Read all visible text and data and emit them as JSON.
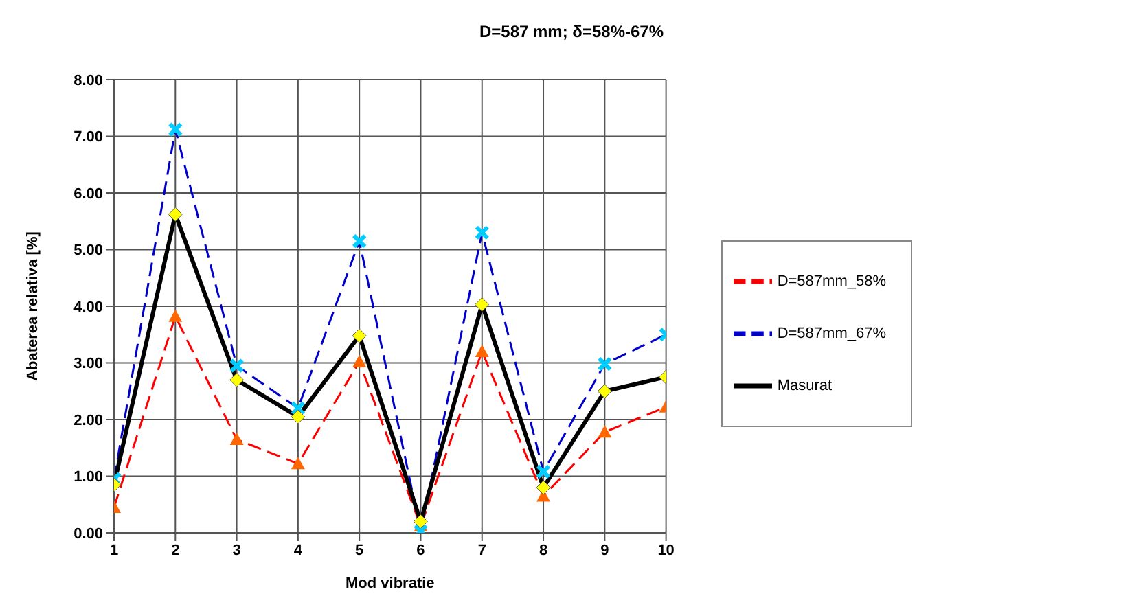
{
  "chart_data": {
    "type": "line",
    "title": "D=587 mm; δ=58%-67%",
    "xlabel": "Mod vibratie",
    "ylabel": "Abaterea relativa [%]",
    "x": [
      1,
      2,
      3,
      4,
      5,
      6,
      7,
      8,
      9,
      10
    ],
    "series": [
      {
        "name": "D=587mm_58%",
        "color": "#ff0000",
        "marker": "triangle",
        "line_style": "dashed",
        "values": [
          0.45,
          3.82,
          1.65,
          1.22,
          3.02,
          0.12,
          3.2,
          0.65,
          1.78,
          2.22
        ]
      },
      {
        "name": "D=587mm_67%",
        "color": "#0000cc",
        "marker": "cross",
        "line_style": "dashed",
        "values": [
          0.95,
          7.12,
          2.95,
          2.2,
          5.15,
          0.03,
          5.3,
          1.08,
          2.98,
          3.5
        ]
      },
      {
        "name": "Masurat",
        "color": "#000000",
        "marker": "diamond",
        "line_style": "solid",
        "values": [
          0.85,
          5.62,
          2.7,
          2.05,
          3.48,
          0.2,
          4.03,
          0.8,
          2.5,
          2.75
        ]
      }
    ],
    "xlim": [
      1,
      10
    ],
    "xticks": [
      1,
      2,
      3,
      4,
      5,
      6,
      7,
      8,
      9,
      10
    ],
    "ylim": [
      0,
      8
    ],
    "yticks": [
      {
        "value": 0,
        "label": "0.00"
      },
      {
        "value": 1,
        "label": "1.00"
      },
      {
        "value": 2,
        "label": "2.00"
      },
      {
        "value": 3,
        "label": "3.00"
      },
      {
        "value": 4,
        "label": "4.00"
      },
      {
        "value": 5,
        "label": "5.00"
      },
      {
        "value": 6,
        "label": "6.00"
      },
      {
        "value": 7,
        "label": "7.00"
      },
      {
        "value": 8,
        "label": "8.00"
      }
    ],
    "grid": true,
    "legend": "right"
  }
}
